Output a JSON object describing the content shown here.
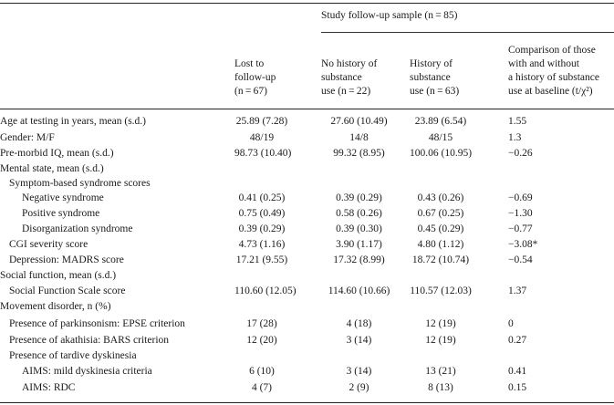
{
  "header": {
    "group_label": "Study follow-up sample (n = 85)",
    "col1": [
      "Lost to",
      "follow-up",
      "(n = 67)"
    ],
    "col2": [
      "No history of",
      "substance",
      "use (n = 22)"
    ],
    "col3": [
      "History of",
      "substance",
      "use (n = 63)"
    ],
    "col4": [
      "Comparison of those",
      "with and without",
      "a history of substance",
      "use at baseline (t/χ²)"
    ]
  },
  "rows": [
    {
      "label": "Age at testing in years, mean (s.d.)",
      "level": 0,
      "values": [
        "25.89 (7.28)",
        "27.60 (10.49)",
        "23.89 (6.54)",
        "1.55"
      ]
    },
    {
      "label": "Gender: M/F",
      "level": 0,
      "values": [
        "48/19",
        "14/8",
        "48/15",
        "1.3"
      ]
    },
    {
      "label": "Pre-morbid IQ, mean (s.d.)",
      "level": 0,
      "values": [
        "98.73 (10.40)",
        "99.32 (8.95)",
        "100.06 (10.95)",
        "−0.26"
      ]
    },
    {
      "label": "Mental state, mean (s.d.)",
      "level": 0,
      "values": [
        "",
        "",
        "",
        ""
      ]
    },
    {
      "label": "Symptom-based syndrome scores",
      "level": 1,
      "values": [
        "",
        "",
        "",
        ""
      ]
    },
    {
      "label": "Negative syndrome",
      "level": 2,
      "values": [
        "0.41 (0.25)",
        "0.39 (0.29)",
        "0.43 (0.26)",
        "−0.69"
      ]
    },
    {
      "label": "Positive syndrome",
      "level": 2,
      "values": [
        "0.75 (0.49)",
        "0.58 (0.26)",
        "0.67 (0.25)",
        "−1.30"
      ]
    },
    {
      "label": "Disorganization syndrome",
      "level": 2,
      "values": [
        "0.39 (0.29)",
        "0.39 (0.30)",
        "0.45 (0.29)",
        "−0.77"
      ]
    },
    {
      "label": "CGI severity score",
      "level": 1,
      "values": [
        "4.73 (1.16)",
        "3.90 (1.17)",
        "4.80 (1.12)",
        "−3.08*"
      ]
    },
    {
      "label": "Depression: MADRS score",
      "level": 1,
      "values": [
        "17.21 (9.55)",
        "17.32 (8.99)",
        "18.72 (10.74)",
        "−0.54"
      ]
    },
    {
      "label": "Social function, mean (s.d.)",
      "level": 0,
      "values": [
        "",
        "",
        "",
        ""
      ]
    },
    {
      "label": "Social Function Scale score",
      "level": 1,
      "values": [
        "110.60 (12.05)",
        "114.60 (10.66)",
        "110.57 (12.03)",
        "1.37"
      ]
    },
    {
      "label": "Movement disorder, n (%)",
      "level": 0,
      "values": [
        "",
        "",
        "",
        ""
      ]
    },
    {
      "label": "Presence of parkinsonism: EPSE criterion",
      "level": 1,
      "values": [
        "17 (28)",
        "4 (18)",
        "12 (19)",
        "0"
      ]
    },
    {
      "label": "Presence of akathisia: BARS criterion",
      "level": 1,
      "values": [
        "12 (20)",
        "3 (14)",
        "12 (19)",
        "0.27"
      ]
    },
    {
      "label": "Presence of tardive dyskinesia",
      "level": 1,
      "values": [
        "",
        "",
        "",
        ""
      ]
    },
    {
      "label": "AIMS: mild dyskinesia criteria",
      "level": 2,
      "values": [
        "6 (10)",
        "3 (14)",
        "13 (21)",
        "0.41"
      ]
    },
    {
      "label": "AIMS: RDC",
      "level": 2,
      "values": [
        "4 (7)",
        "2 (9)",
        "8 (13)",
        "0.15"
      ]
    }
  ]
}
